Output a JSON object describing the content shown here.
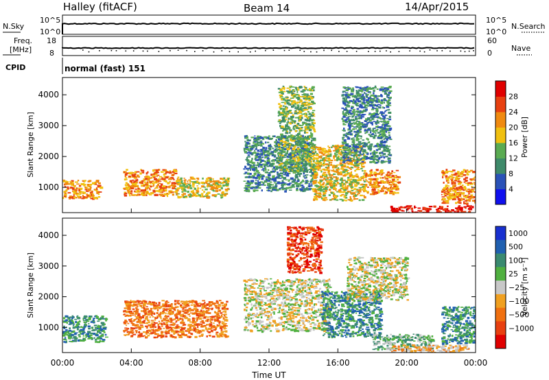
{
  "header": {
    "station": "Halley (fitACF)",
    "beam": "Beam 14",
    "date": "14/Apr/2015"
  },
  "strip_nsky": {
    "left_label": "N.Sky",
    "left_ticks": [
      "10^5",
      "10^0"
    ],
    "right_ticks": [
      "10^5",
      "10^0"
    ],
    "right_label": "N.Search"
  },
  "strip_freq": {
    "left_label_1": "Freq.",
    "left_label_2": "[MHz]",
    "left_ticks": [
      "18",
      "8"
    ],
    "right_ticks": [
      "60",
      "0"
    ],
    "right_label": "Nave"
  },
  "cpid": {
    "label": "CPID",
    "value": "normal (fast) 151"
  },
  "chart_data": [
    {
      "type": "heatmap",
      "panel": "power",
      "ylabel": "Slant Range [km]",
      "yticks": [
        1000,
        2000,
        3000,
        4000
      ],
      "ylim": [
        180,
        4560
      ],
      "xlim_hours": [
        0,
        24
      ],
      "colorbar": {
        "label": "Power [dB]",
        "ticks": [
          "4",
          "8",
          "12",
          "16",
          "20",
          "24",
          "28"
        ],
        "colors": [
          "#1010ee",
          "#2a52b8",
          "#3e8a6a",
          "#5aab52",
          "#f0c010",
          "#f08a10",
          "#e84010",
          "#e00000"
        ]
      },
      "regions": [
        {
          "t0": 0.0,
          "t1": 2.2,
          "r0": 650,
          "r1": 1250,
          "level": 5
        },
        {
          "t0": 3.5,
          "t1": 6.5,
          "r0": 750,
          "r1": 1600,
          "level": 5
        },
        {
          "t0": 6.5,
          "t1": 9.6,
          "r0": 700,
          "r1": 1350,
          "level": 4
        },
        {
          "t0": 10.5,
          "t1": 14.5,
          "r0": 900,
          "r1": 2700,
          "level": 2
        },
        {
          "t0": 12.5,
          "t1": 14.6,
          "r0": 1500,
          "r1": 4300,
          "level": 3
        },
        {
          "t0": 14.5,
          "t1": 17.5,
          "r0": 600,
          "r1": 2400,
          "level": 4
        },
        {
          "t0": 16.2,
          "t1": 19.0,
          "r0": 1800,
          "r1": 4300,
          "level": 2
        },
        {
          "t0": 17.5,
          "t1": 19.5,
          "r0": 800,
          "r1": 1600,
          "level": 5
        },
        {
          "t0": 19.0,
          "t1": 23.8,
          "r0": 200,
          "r1": 420,
          "level": 7
        },
        {
          "t0": 22.0,
          "t1": 24.0,
          "r0": 500,
          "r1": 1600,
          "level": 5
        }
      ]
    },
    {
      "type": "heatmap",
      "panel": "velocity",
      "ylabel": "Slant Range [km]",
      "xlabel": "Time UT",
      "xticks": [
        "00:00",
        "04:00",
        "08:00",
        "12:00",
        "16:00",
        "20:00",
        "00:00"
      ],
      "xtick_hours": [
        0,
        4,
        8,
        12,
        16,
        20,
        24
      ],
      "yticks": [
        1000,
        2000,
        3000,
        4000
      ],
      "ylim": [
        180,
        4560
      ],
      "xlim_hours": [
        0,
        24
      ],
      "colorbar": {
        "label": "Velocity [m s⁻¹]",
        "ticks": [
          "1000",
          "500",
          "100",
          "25",
          "−25",
          "−100",
          "−500",
          "−1000"
        ],
        "colors": [
          "#1830d0",
          "#2060b0",
          "#3a8a70",
          "#50b040",
          "#c8c8c8",
          "#f0a020",
          "#f07010",
          "#e84010",
          "#e00000"
        ]
      },
      "regions": [
        {
          "t0": 0.0,
          "t1": 2.5,
          "r0": 550,
          "r1": 1400,
          "level": 2
        },
        {
          "t0": 3.5,
          "t1": 9.5,
          "r0": 700,
          "r1": 1900,
          "level": 6
        },
        {
          "t0": 10.5,
          "t1": 15.5,
          "r0": 900,
          "r1": 2600,
          "level": 4
        },
        {
          "t0": 13.0,
          "t1": 15.0,
          "r0": 2800,
          "r1": 4300,
          "level": 7
        },
        {
          "t0": 15.0,
          "t1": 18.5,
          "r0": 700,
          "r1": 2200,
          "level": 2
        },
        {
          "t0": 16.5,
          "t1": 20.0,
          "r0": 1900,
          "r1": 3300,
          "level": 4
        },
        {
          "t0": 18.0,
          "t1": 21.5,
          "r0": 300,
          "r1": 800,
          "level": 3
        },
        {
          "t0": 19.0,
          "t1": 23.5,
          "r0": 200,
          "r1": 450,
          "level": 5
        },
        {
          "t0": 22.0,
          "t1": 24.0,
          "r0": 500,
          "r1": 1700,
          "level": 2
        }
      ]
    }
  ]
}
